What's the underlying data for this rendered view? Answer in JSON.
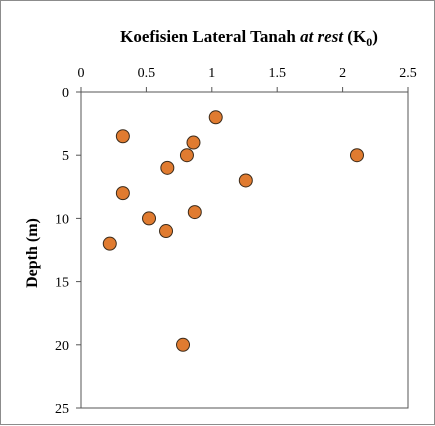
{
  "chart_data": {
    "type": "scatter",
    "title": {
      "prefix": "Koefisien Lateral Tanah ",
      "italic": "at rest",
      "open": " (K",
      "subscript": "0",
      "close": ")"
    },
    "xlabel": "",
    "ylabel": "Depth (m)",
    "x_axis_position": "top",
    "y_axis_inverted": true,
    "xlim": [
      0,
      2.5
    ],
    "ylim": [
      0,
      25
    ],
    "x_ticks": [
      0,
      0.5,
      1,
      1.5,
      2,
      2.5
    ],
    "x_tick_labels": [
      "0",
      "0.5",
      "1",
      "1.5",
      "2",
      "2.5"
    ],
    "y_ticks": [
      0,
      5,
      10,
      15,
      20,
      25
    ],
    "y_tick_labels": [
      "0",
      "5",
      "10",
      "15",
      "20",
      "25"
    ],
    "grid": false,
    "legend": "none",
    "marker_color": "#e07b30",
    "marker_edge_color": "#3a2a1a",
    "points": [
      {
        "x": 1.03,
        "y": 2.0
      },
      {
        "x": 0.32,
        "y": 3.5
      },
      {
        "x": 0.86,
        "y": 4.0
      },
      {
        "x": 0.81,
        "y": 5.0
      },
      {
        "x": 2.11,
        "y": 5.0
      },
      {
        "x": 0.66,
        "y": 6.0
      },
      {
        "x": 1.26,
        "y": 7.0
      },
      {
        "x": 0.32,
        "y": 8.0
      },
      {
        "x": 0.87,
        "y": 9.5
      },
      {
        "x": 0.52,
        "y": 10.0
      },
      {
        "x": 0.65,
        "y": 11.0
      },
      {
        "x": 0.22,
        "y": 12.0
      },
      {
        "x": 0.78,
        "y": 20.0
      }
    ]
  }
}
